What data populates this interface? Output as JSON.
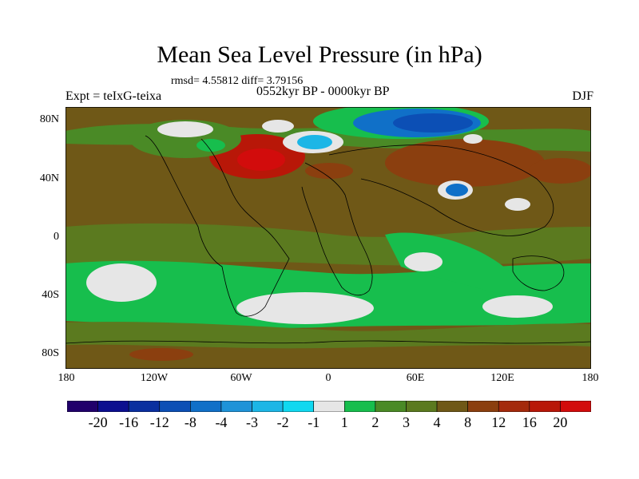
{
  "figure": {
    "title": "Mean Sea Level Pressure (in hPa)",
    "stats": "rmsd= 4.55812 diff= 3.79156",
    "left_label": "Expt = teIxG-teixa",
    "center_label": "0552kyr BP - 0000kyr BP",
    "right_label": "DJF"
  },
  "map": {
    "lat_ticks": [
      "80N",
      "40N",
      "0",
      "40S",
      "80S"
    ],
    "lon_ticks": [
      "180",
      "120W",
      "60W",
      "0",
      "60E",
      "120E",
      "180"
    ],
    "background_color": "#6f5817",
    "coastline_color": "#000000"
  },
  "colorbar": {
    "labels": [
      "-20",
      "-16",
      "-12",
      "-8",
      "-4",
      "-3",
      "-2",
      "-1",
      "1",
      "2",
      "3",
      "4",
      "8",
      "12",
      "16",
      "20"
    ],
    "colors": [
      "#21006b",
      "#0c0f8f",
      "#0a2f9f",
      "#0c4fb5",
      "#1070c8",
      "#1f93d8",
      "#1cb6e6",
      "#10d8f0",
      "#e6e6e6",
      "#17be4d",
      "#4a8a26",
      "#5b7a1f",
      "#6f5817",
      "#8b3f0f",
      "#a42a0c",
      "#b81708",
      "#d20c0c"
    ]
  }
}
